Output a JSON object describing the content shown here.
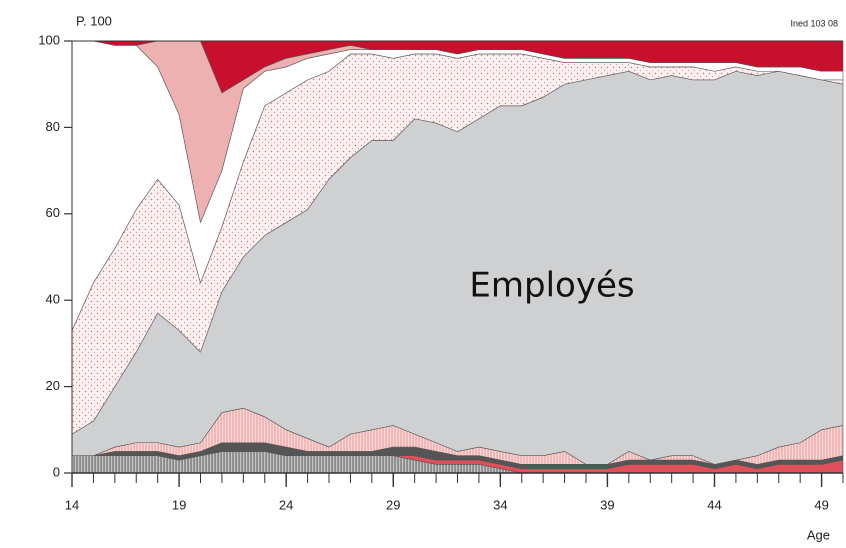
{
  "chart_data": {
    "type": "stacked_area",
    "annotations": [
      "P. 100",
      "Ined 103 08"
    ],
    "xlabel": "Age",
    "x": [
      14,
      15,
      16,
      17,
      18,
      19,
      20,
      21,
      22,
      23,
      24,
      25,
      26,
      27,
      28,
      29,
      30,
      31,
      32,
      33,
      34,
      35,
      36,
      37,
      38,
      39,
      40,
      41,
      42,
      43,
      44,
      45,
      46,
      47,
      48,
      49,
      50
    ],
    "xlim": [
      14,
      50
    ],
    "xticks": [
      14,
      19,
      24,
      29,
      34,
      39,
      44,
      49
    ],
    "ylim": [
      0,
      100
    ],
    "yticks": [
      0,
      20,
      40,
      60,
      80,
      100
    ],
    "series": [
      {
        "color": "#8c8c8c",
        "pattern": "hatch",
        "values": [
          4,
          4,
          4,
          4,
          4,
          3,
          4,
          5,
          5,
          5,
          4,
          4,
          4,
          4,
          4,
          4,
          3,
          2,
          2,
          2,
          1,
          0,
          0,
          0,
          0,
          0,
          0,
          0,
          0,
          0,
          0,
          0,
          0,
          0,
          0,
          0,
          0
        ]
      },
      {
        "color": "#e0505a",
        "values": [
          0,
          0,
          0,
          0,
          0,
          0,
          0,
          0,
          0,
          0,
          0,
          0,
          0,
          0,
          0,
          0,
          1,
          1,
          1,
          1,
          1,
          1,
          1,
          1,
          1,
          1,
          2,
          2,
          2,
          2,
          1,
          2,
          1,
          2,
          2,
          2,
          3
        ]
      },
      {
        "color": "#555555",
        "values": [
          0,
          0,
          1,
          1,
          1,
          1,
          1,
          2,
          2,
          2,
          2,
          1,
          1,
          1,
          1,
          2,
          2,
          2,
          1,
          1,
          1,
          1,
          1,
          1,
          1,
          1,
          1,
          1,
          1,
          1,
          1,
          1,
          1,
          1,
          1,
          1,
          1
        ]
      },
      {
        "color": "#f2b4b4",
        "pattern": "hatch",
        "values": [
          0,
          0,
          1,
          2,
          2,
          2,
          2,
          7,
          8,
          6,
          4,
          3,
          1,
          4,
          5,
          5,
          3,
          2,
          1,
          2,
          2,
          2,
          2,
          3,
          0,
          0,
          2,
          0,
          1,
          1,
          0,
          0,
          2,
          3,
          4,
          7,
          7
        ]
      },
      {
        "name": "Employés",
        "color": "#cfd0d2",
        "values": [
          5,
          8,
          14,
          21,
          30,
          27,
          21,
          28,
          35,
          42,
          48,
          53,
          62,
          64,
          67,
          66,
          73,
          74,
          74,
          76,
          80,
          81,
          83,
          85,
          89,
          90,
          88,
          88,
          88,
          87,
          89,
          90,
          88,
          87,
          85,
          81,
          79
        ]
      },
      {
        "color": "#fdf1f1",
        "pattern": "dots",
        "values": [
          24,
          32,
          32,
          33,
          31,
          29,
          16,
          15,
          22,
          30,
          30,
          30,
          25,
          24,
          20,
          19,
          15,
          16,
          17,
          15,
          12,
          12,
          9,
          5,
          4,
          3,
          2,
          3,
          2,
          3,
          2,
          1,
          1,
          0,
          0,
          0,
          1
        ]
      },
      {
        "color": "#ffffff",
        "values": [
          67,
          56,
          47,
          38,
          26,
          21,
          14,
          13,
          17,
          8,
          6,
          5,
          4,
          1,
          1,
          2,
          1,
          1,
          1,
          1,
          1,
          1,
          1,
          1,
          1,
          1,
          1,
          1,
          1,
          1,
          2,
          1,
          1,
          1,
          2,
          2,
          2
        ]
      },
      {
        "color": "#eeb1b1",
        "values": [
          0,
          0,
          0,
          0,
          6,
          17,
          42,
          18,
          2,
          1,
          2,
          1,
          1,
          1,
          0,
          0,
          0,
          0,
          0,
          0,
          0,
          0,
          0,
          0,
          0,
          0,
          0,
          0,
          0,
          0,
          0,
          0,
          0,
          0,
          0,
          0,
          0
        ]
      },
      {
        "color": "#c8102e",
        "values": [
          0,
          0,
          1,
          1,
          0,
          0,
          0,
          12,
          9,
          6,
          4,
          3,
          2,
          1,
          2,
          2,
          2,
          2,
          3,
          2,
          2,
          2,
          3,
          4,
          4,
          4,
          4,
          5,
          5,
          5,
          5,
          5,
          6,
          6,
          6,
          7,
          7
        ]
      }
    ]
  }
}
